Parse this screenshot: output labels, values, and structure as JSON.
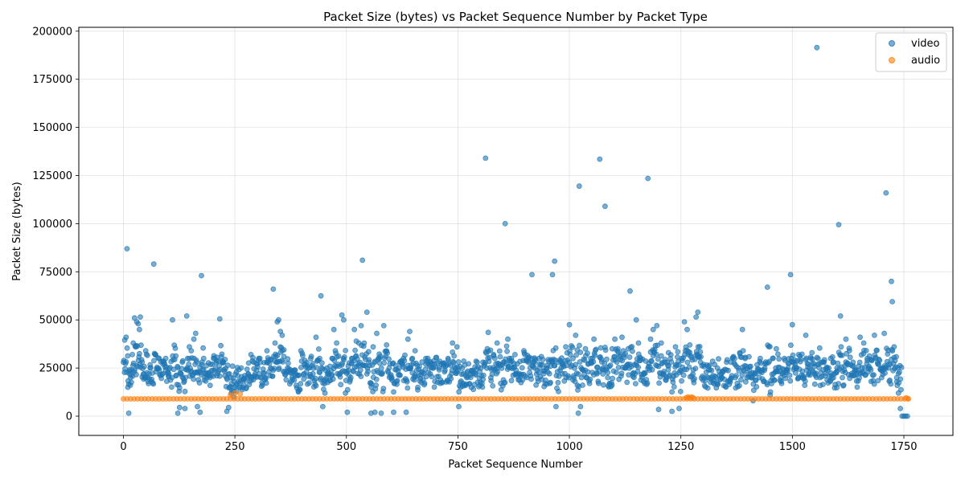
{
  "chart_data": {
    "type": "scatter",
    "title": "Packet Size (bytes) vs Packet Sequence Number by Packet Type",
    "xlabel": "Packet Sequence Number",
    "ylabel": "Packet Size (bytes)",
    "xlim": [
      -100,
      1860
    ],
    "ylim": [
      -10000,
      202000
    ],
    "xticks": [
      0,
      250,
      500,
      750,
      1000,
      1250,
      1500,
      1750
    ],
    "yticks": [
      0,
      25000,
      50000,
      75000,
      100000,
      125000,
      150000,
      175000,
      200000
    ],
    "grid": true,
    "legend_position": "top-right",
    "series": [
      {
        "name": "video",
        "color": "#1f77b4",
        "points": [
          [
            3,
            39500
          ],
          [
            6,
            41000
          ],
          [
            8,
            87000
          ],
          [
            10,
            15000
          ],
          [
            12,
            1500
          ],
          [
            14,
            22000
          ],
          [
            16,
            20000
          ],
          [
            20,
            32000
          ],
          [
            22,
            38000
          ],
          [
            25,
            51000
          ],
          [
            28,
            36000
          ],
          [
            30,
            49000
          ],
          [
            33,
            48000
          ],
          [
            36,
            45000
          ],
          [
            38,
            51500
          ],
          [
            42,
            28000
          ],
          [
            46,
            22000
          ],
          [
            50,
            34000
          ],
          [
            55,
            18000
          ],
          [
            60,
            25000
          ],
          [
            68,
            79000
          ],
          [
            72,
            32000
          ],
          [
            80,
            30000
          ],
          [
            88,
            22000
          ],
          [
            95,
            30000
          ],
          [
            102,
            22000
          ],
          [
            110,
            50000
          ],
          [
            118,
            21000
          ],
          [
            122,
            1500
          ],
          [
            126,
            4500
          ],
          [
            132,
            28000
          ],
          [
            138,
            4000
          ],
          [
            142,
            52000
          ],
          [
            148,
            36000
          ],
          [
            152,
            34000
          ],
          [
            158,
            40000
          ],
          [
            162,
            43000
          ],
          [
            166,
            5000
          ],
          [
            172,
            2000
          ],
          [
            175,
            73000
          ],
          [
            180,
            30000
          ],
          [
            186,
            22000
          ],
          [
            194,
            20000
          ],
          [
            202,
            30000
          ],
          [
            210,
            21000
          ],
          [
            216,
            50500
          ],
          [
            222,
            28000
          ],
          [
            228,
            21000
          ],
          [
            232,
            2500
          ],
          [
            236,
            4500
          ],
          [
            242,
            12000
          ],
          [
            248,
            10000
          ],
          [
            254,
            13000
          ],
          [
            262,
            15000
          ],
          [
            270,
            19000
          ],
          [
            280,
            22000
          ],
          [
            286,
            32000
          ],
          [
            292,
            28000
          ],
          [
            300,
            27000
          ],
          [
            308,
            20000
          ],
          [
            316,
            22000
          ],
          [
            322,
            34000
          ],
          [
            330,
            25000
          ],
          [
            336,
            66000
          ],
          [
            340,
            38000
          ],
          [
            345,
            49000
          ],
          [
            348,
            50000
          ],
          [
            352,
            44000
          ],
          [
            356,
            42000
          ],
          [
            360,
            31000
          ],
          [
            368,
            25000
          ],
          [
            375,
            24000
          ],
          [
            385,
            21000
          ],
          [
            392,
            13000
          ],
          [
            398,
            34000
          ],
          [
            405,
            22000
          ],
          [
            412,
            26000
          ],
          [
            420,
            30000
          ],
          [
            425,
            22000
          ],
          [
            432,
            41000
          ],
          [
            440,
            30000
          ],
          [
            443,
            62500
          ],
          [
            447,
            5000
          ],
          [
            452,
            12000
          ],
          [
            460,
            22000
          ],
          [
            468,
            30000
          ],
          [
            472,
            45000
          ],
          [
            478,
            38000
          ],
          [
            484,
            26000
          ],
          [
            490,
            52500
          ],
          [
            494,
            50000
          ],
          [
            498,
            12000
          ],
          [
            502,
            2000
          ],
          [
            506,
            21000
          ],
          [
            512,
            30000
          ],
          [
            518,
            45000
          ],
          [
            522,
            39000
          ],
          [
            528,
            38000
          ],
          [
            533,
            47000
          ],
          [
            536,
            81000
          ],
          [
            540,
            38000
          ],
          [
            546,
            54000
          ],
          [
            550,
            28000
          ],
          [
            555,
            1500
          ],
          [
            560,
            36000
          ],
          [
            564,
            2000
          ],
          [
            568,
            43000
          ],
          [
            574,
            30000
          ],
          [
            578,
            1500
          ],
          [
            584,
            47000
          ],
          [
            590,
            37000
          ],
          [
            596,
            25000
          ],
          [
            602,
            20000
          ],
          [
            606,
            2000
          ],
          [
            612,
            18000
          ],
          [
            620,
            28000
          ],
          [
            628,
            30000
          ],
          [
            634,
            2000
          ],
          [
            638,
            40000
          ],
          [
            642,
            44000
          ],
          [
            648,
            30000
          ],
          [
            654,
            34000
          ],
          [
            660,
            15000
          ],
          [
            668,
            23000
          ],
          [
            678,
            30000
          ],
          [
            688,
            22000
          ],
          [
            698,
            27000
          ],
          [
            708,
            24000
          ],
          [
            718,
            26000
          ],
          [
            728,
            30000
          ],
          [
            738,
            38000
          ],
          [
            748,
            36000
          ],
          [
            752,
            5000
          ],
          [
            756,
            15000
          ],
          [
            762,
            22000
          ],
          [
            770,
            20000
          ],
          [
            780,
            15000
          ],
          [
            790,
            22000
          ],
          [
            800,
            16000
          ],
          [
            806,
            28000
          ],
          [
            812,
            134000
          ],
          [
            818,
            43500
          ],
          [
            824,
            20000
          ],
          [
            830,
            32000
          ],
          [
            838,
            38000
          ],
          [
            846,
            17000
          ],
          [
            852,
            28000
          ],
          [
            856,
            100000
          ],
          [
            862,
            40000
          ],
          [
            870,
            30000
          ],
          [
            878,
            32000
          ],
          [
            888,
            22000
          ],
          [
            898,
            34000
          ],
          [
            908,
            30000
          ],
          [
            916,
            73500
          ],
          [
            922,
            25000
          ],
          [
            932,
            30000
          ],
          [
            942,
            22000
          ],
          [
            950,
            25000
          ],
          [
            958,
            26000
          ],
          [
            962,
            73500
          ],
          [
            967,
            80500
          ],
          [
            970,
            5000
          ],
          [
            976,
            28000
          ],
          [
            984,
            22000
          ],
          [
            992,
            36000
          ],
          [
            1000,
            47500
          ],
          [
            1008,
            30000
          ],
          [
            1014,
            42000
          ],
          [
            1018,
            16000
          ],
          [
            1020,
            1500
          ],
          [
            1022,
            119500
          ],
          [
            1025,
            5000
          ],
          [
            1030,
            24000
          ],
          [
            1036,
            35000
          ],
          [
            1042,
            27000
          ],
          [
            1048,
            30000
          ],
          [
            1055,
            40000
          ],
          [
            1062,
            22000
          ],
          [
            1068,
            133500
          ],
          [
            1075,
            25000
          ],
          [
            1080,
            109000
          ],
          [
            1086,
            20000
          ],
          [
            1090,
            17000
          ],
          [
            1096,
            35000
          ],
          [
            1102,
            40000
          ],
          [
            1110,
            33000
          ],
          [
            1118,
            41000
          ],
          [
            1126,
            25000
          ],
          [
            1132,
            35000
          ],
          [
            1136,
            65000
          ],
          [
            1142,
            22000
          ],
          [
            1150,
            50000
          ],
          [
            1155,
            38000
          ],
          [
            1160,
            30000
          ],
          [
            1168,
            22000
          ],
          [
            1176,
            123500
          ],
          [
            1182,
            40000
          ],
          [
            1188,
            45000
          ],
          [
            1196,
            47000
          ],
          [
            1200,
            3500
          ],
          [
            1206,
            38000
          ],
          [
            1214,
            28000
          ],
          [
            1222,
            33000
          ],
          [
            1230,
            2500
          ],
          [
            1238,
            36000
          ],
          [
            1246,
            4000
          ],
          [
            1252,
            30000
          ],
          [
            1258,
            49000
          ],
          [
            1264,
            45000
          ],
          [
            1270,
            37000
          ],
          [
            1278,
            24000
          ],
          [
            1284,
            51500
          ],
          [
            1288,
            54000
          ],
          [
            1294,
            28000
          ],
          [
            1302,
            20000
          ],
          [
            1312,
            24000
          ],
          [
            1322,
            21000
          ],
          [
            1332,
            25000
          ],
          [
            1342,
            20000
          ],
          [
            1352,
            24000
          ],
          [
            1362,
            28000
          ],
          [
            1372,
            20000
          ],
          [
            1382,
            33000
          ],
          [
            1388,
            45000
          ],
          [
            1394,
            30000
          ],
          [
            1404,
            24000
          ],
          [
            1412,
            8000
          ],
          [
            1418,
            22000
          ],
          [
            1428,
            30000
          ],
          [
            1438,
            25000
          ],
          [
            1444,
            67000
          ],
          [
            1450,
            11000
          ],
          [
            1456,
            30000
          ],
          [
            1464,
            35000
          ],
          [
            1472,
            23000
          ],
          [
            1482,
            30000
          ],
          [
            1490,
            25000
          ],
          [
            1496,
            73500
          ],
          [
            1500,
            47500
          ],
          [
            1506,
            29000
          ],
          [
            1514,
            32000
          ],
          [
            1522,
            20000
          ],
          [
            1530,
            42000
          ],
          [
            1536,
            27000
          ],
          [
            1544,
            33000
          ],
          [
            1550,
            22000
          ],
          [
            1555,
            191500
          ],
          [
            1562,
            20000
          ],
          [
            1570,
            28000
          ],
          [
            1578,
            25000
          ],
          [
            1586,
            30000
          ],
          [
            1592,
            20000
          ],
          [
            1600,
            25000
          ],
          [
            1604,
            99500
          ],
          [
            1608,
            52000
          ],
          [
            1612,
            20000
          ],
          [
            1620,
            40000
          ],
          [
            1628,
            34000
          ],
          [
            1636,
            28000
          ],
          [
            1644,
            22000
          ],
          [
            1652,
            41000
          ],
          [
            1660,
            38000
          ],
          [
            1668,
            30000
          ],
          [
            1676,
            24000
          ],
          [
            1684,
            42000
          ],
          [
            1692,
            27000
          ],
          [
            1700,
            20000
          ],
          [
            1706,
            43000
          ],
          [
            1710,
            116000
          ],
          [
            1716,
            25000
          ],
          [
            1722,
            70000
          ],
          [
            1724,
            59500
          ],
          [
            1728,
            36000
          ],
          [
            1734,
            20000
          ],
          [
            1738,
            12000
          ],
          [
            1742,
            4000
          ],
          [
            1746,
            0
          ],
          [
            1750,
            0
          ],
          [
            1754,
            0
          ],
          [
            1758,
            0
          ]
        ]
      },
      {
        "name": "audio",
        "color": "#ff7f0e",
        "constant_y": 9000,
        "x_start": 0,
        "x_end": 1760,
        "x_step": 8,
        "extra_points": [
          [
            240,
            11000
          ],
          [
            250,
            12000
          ],
          [
            262,
            11500
          ],
          [
            1262,
            9500
          ],
          [
            1266,
            10000
          ],
          [
            1270,
            9500
          ],
          [
            1274,
            10000
          ],
          [
            1278,
            9500
          ],
          [
            1755,
            9500
          ],
          [
            1760,
            9000
          ]
        ]
      }
    ]
  }
}
